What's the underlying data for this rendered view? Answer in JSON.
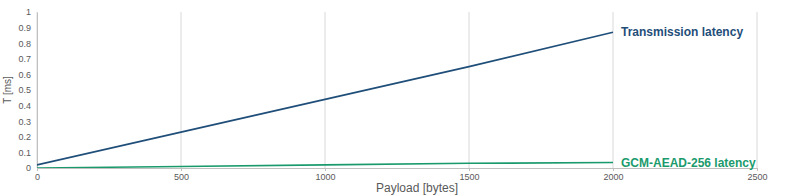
{
  "chart_data": {
    "type": "line",
    "x_label": "Payload [bytes]",
    "y_label": "T [ms]",
    "x": [
      0,
      500,
      1000,
      1500,
      2000
    ],
    "series": [
      {
        "name": "Transmission latency",
        "color": "#1f4e79",
        "values": [
          0.02,
          0.23,
          0.44,
          0.65,
          0.87
        ]
      },
      {
        "name": "GCM-AEAD-256 latency",
        "color": "#1a9a6c",
        "values": [
          0.0,
          0.01,
          0.02,
          0.03,
          0.035
        ]
      }
    ],
    "xlim": [
      0,
      2500
    ],
    "xticks": [
      0,
      500,
      1000,
      1500,
      2000,
      2500
    ],
    "ylim": [
      0,
      1
    ],
    "yticks": [
      0,
      0.1,
      0.2,
      0.3,
      0.4,
      0.5,
      0.6,
      0.7,
      0.8,
      0.9,
      1
    ],
    "grid": "x"
  }
}
